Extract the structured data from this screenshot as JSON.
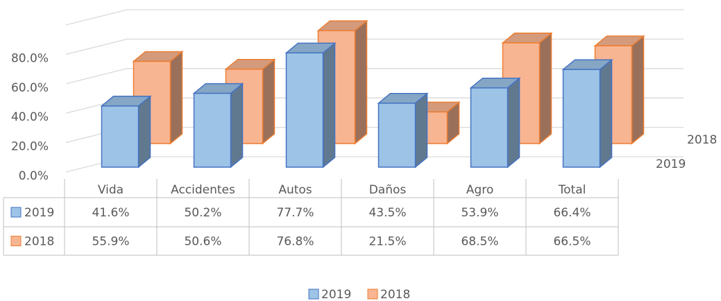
{
  "chart_data": {
    "type": "bar3d",
    "categories": [
      "Vida",
      "Accidentes",
      "Autos",
      "Daños",
      "Agro",
      "Total"
    ],
    "series": [
      {
        "name": "2019",
        "color": "#9dc3e6",
        "values": [
          41.6,
          50.2,
          77.7,
          43.5,
          53.9,
          66.4
        ],
        "value_labels": [
          "41.6%",
          "50.2%",
          "77.7%",
          "43.5%",
          "53.9%",
          "66.4%"
        ]
      },
      {
        "name": "2018",
        "color": "#f8b592",
        "values": [
          55.9,
          50.6,
          76.8,
          21.5,
          68.5,
          66.5
        ],
        "value_labels": [
          "55.9%",
          "50.6%",
          "76.8%",
          "21.5%",
          "68.5%",
          "66.5%"
        ]
      }
    ],
    "ylim": [
      0,
      100
    ],
    "yticks": [
      {
        "value": 0,
        "label": "0.0%"
      },
      {
        "value": 20,
        "label": "20.0%"
      },
      {
        "value": 40,
        "label": "40.0%"
      },
      {
        "value": 60,
        "label": "60.0%"
      },
      {
        "value": 80,
        "label": "80.0%"
      }
    ],
    "grid": true,
    "legend": "bottom",
    "data_table": true
  }
}
